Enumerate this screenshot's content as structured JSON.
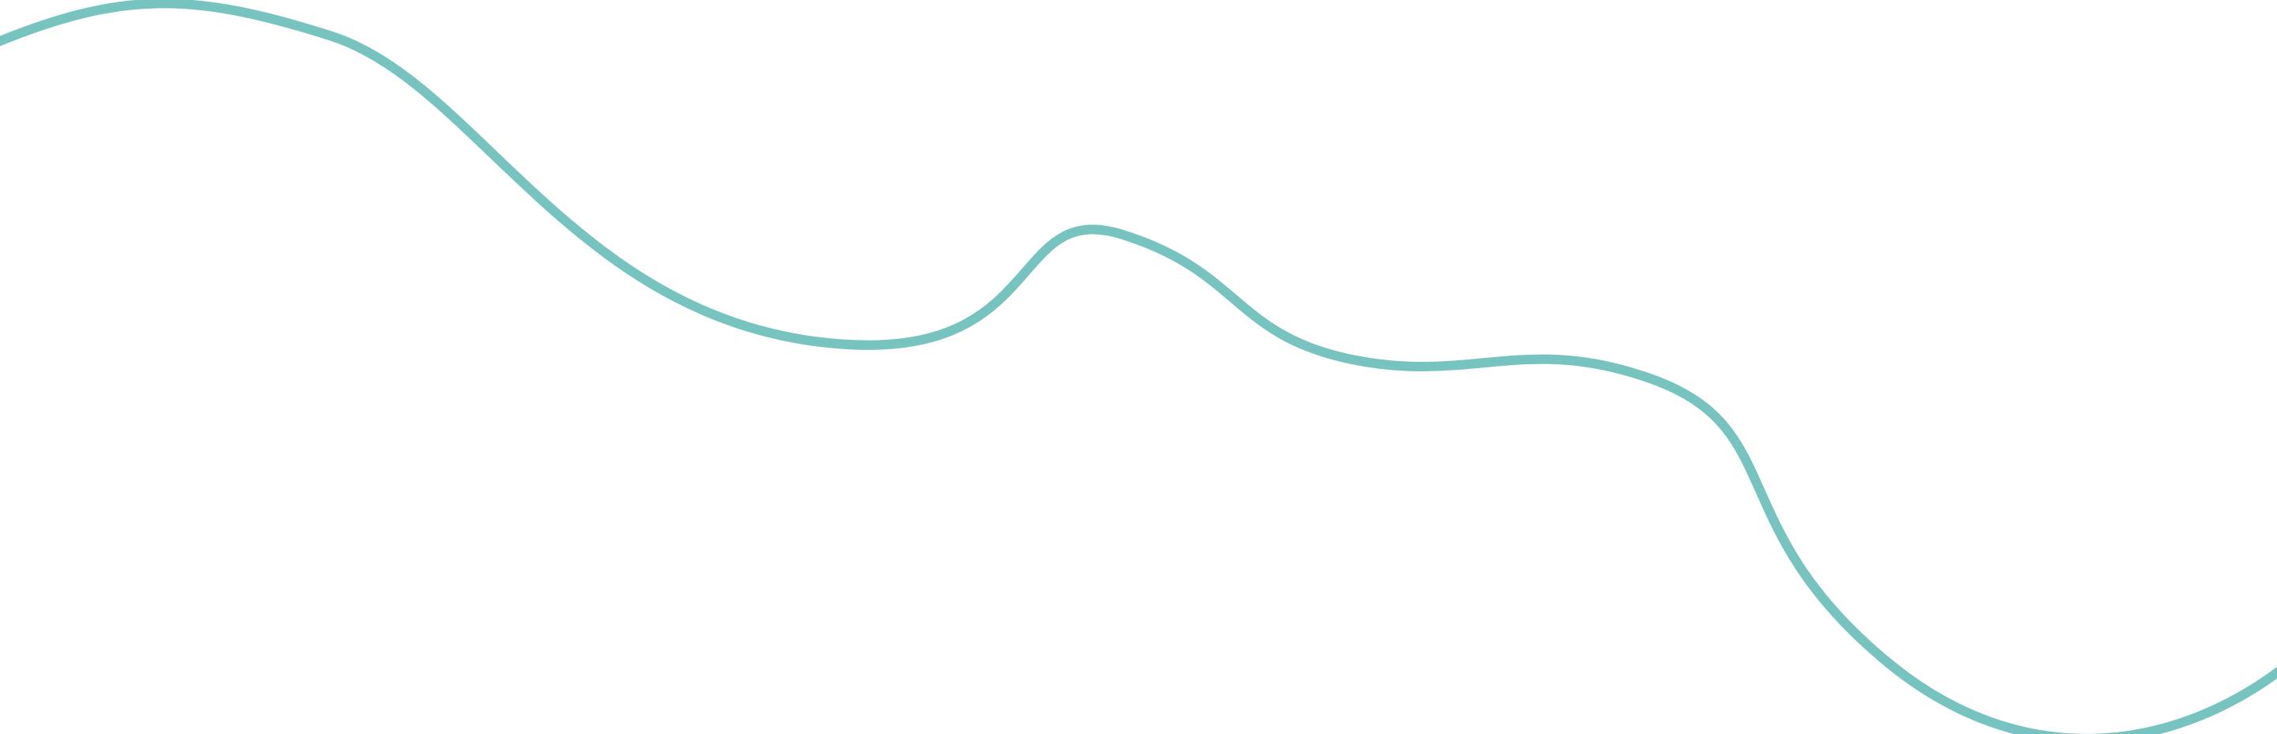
{
  "decoration": {
    "shape": "wavy-divider-line",
    "stroke_color": "#76c3bf",
    "background_color": "#ffffff"
  }
}
